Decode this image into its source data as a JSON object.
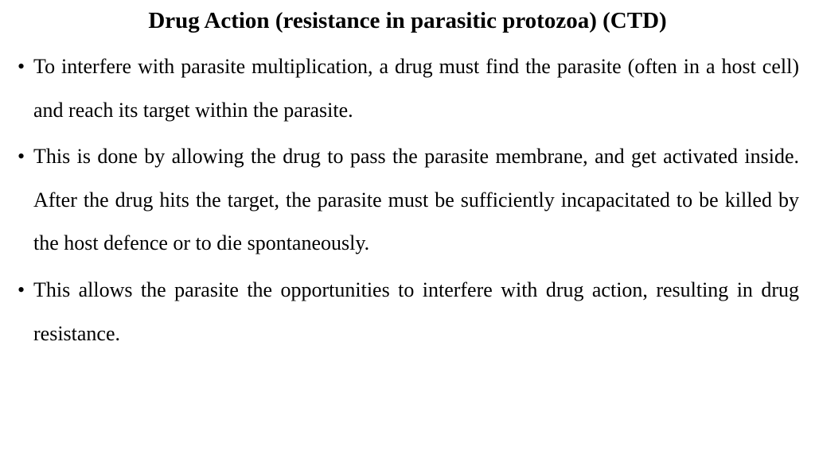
{
  "slide": {
    "title": "Drug Action (resistance in parasitic protozoa) (CTD)",
    "bullets": [
      "To interfere with parasite multiplication, a drug must find the parasite (often in a host cell) and reach its target within the parasite.",
      "This is done by allowing the drug to pass the parasite membrane, and get activated inside. After the drug hits the target, the parasite must be sufficiently incapacitated to be killed by the host defence or to die spontaneously.",
      "This allows the parasite the opportunities to interfere with drug action, resulting in drug resistance."
    ],
    "styling": {
      "background_color": "#ffffff",
      "text_color": "#000000",
      "title_fontsize": 29,
      "title_weight": "bold",
      "body_fontsize": 26,
      "line_height": 2.1,
      "font_family": "Times New Roman",
      "text_align_body": "justify",
      "text_align_title": "center",
      "bullet_char": "•"
    }
  }
}
